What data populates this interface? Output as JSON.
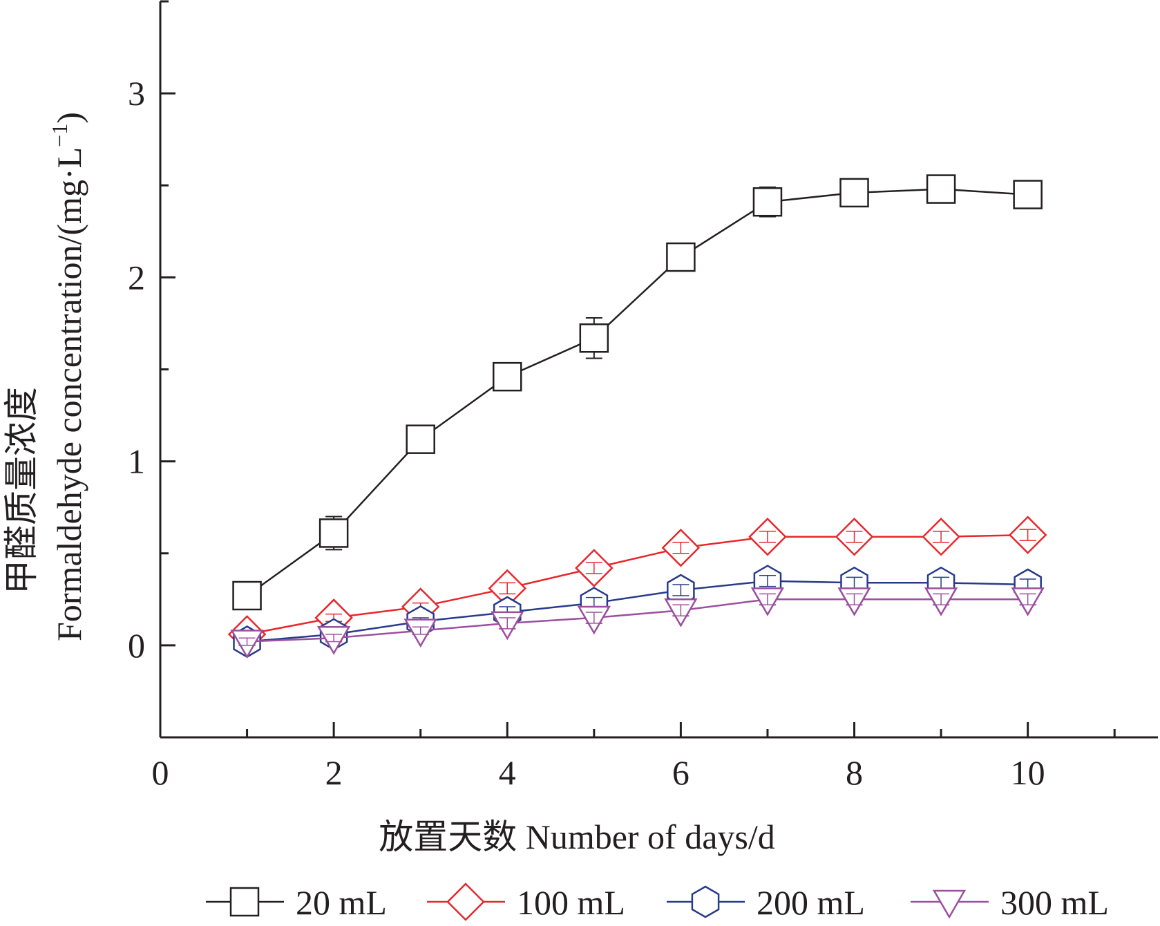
{
  "chart_data": {
    "type": "line",
    "title": "",
    "xlabel": "放置天数  Number of days/d",
    "ylabel": "甲醛质量浓度  Formaldehyde concentration/(mg·L⁻¹)",
    "ylabel_parts": {
      "cn": "甲醛质量浓度",
      "en": "Formaldehyde concentration/(mg·L",
      "sup": "−1",
      "close": ")"
    },
    "xlim": [
      0,
      11.5
    ],
    "ylim": [
      -0.5,
      3.5
    ],
    "xticks": [
      0,
      2,
      4,
      6,
      8,
      10
    ],
    "xticks_minor": [
      1,
      3,
      5,
      7,
      9,
      11
    ],
    "yticks": [
      0,
      1,
      2,
      3
    ],
    "yticks_minor": [
      -0.5,
      0.5,
      1.5,
      2.5,
      3.5
    ],
    "grid": false,
    "legend_position": "bottom",
    "x": [
      1,
      2,
      3,
      4,
      5,
      6,
      7,
      8,
      9,
      10
    ],
    "series": [
      {
        "name": "20 mL",
        "color": "#231f20",
        "marker": "square",
        "values": [
          0.27,
          0.61,
          1.12,
          1.46,
          1.67,
          2.11,
          2.41,
          2.46,
          2.48,
          2.45
        ],
        "errors": [
          0.0,
          0.09,
          0.0,
          0.02,
          0.11,
          0.07,
          0.08,
          0.05,
          0.02,
          0.0
        ]
      },
      {
        "name": "100 mL",
        "color": "#e8262b",
        "marker": "diamond",
        "values": [
          0.06,
          0.15,
          0.21,
          0.31,
          0.42,
          0.53,
          0.59,
          0.59,
          0.59,
          0.6
        ],
        "errors": [
          0.02,
          0.02,
          0.02,
          0.03,
          0.03,
          0.03,
          0.03,
          0.03,
          0.03,
          0.03
        ]
      },
      {
        "name": "200 mL",
        "color": "#283a8c",
        "marker": "hexagon",
        "values": [
          0.02,
          0.06,
          0.13,
          0.18,
          0.23,
          0.3,
          0.35,
          0.34,
          0.34,
          0.33
        ],
        "errors": [
          0.02,
          0.02,
          0.02,
          0.03,
          0.03,
          0.03,
          0.03,
          0.03,
          0.03,
          0.03
        ]
      },
      {
        "name": "300 mL",
        "color": "#9b4f9e",
        "marker": "triangle-down",
        "values": [
          0.02,
          0.04,
          0.08,
          0.12,
          0.15,
          0.19,
          0.25,
          0.25,
          0.25,
          0.25
        ],
        "errors": [
          0.02,
          0.02,
          0.02,
          0.03,
          0.03,
          0.03,
          0.03,
          0.03,
          0.03,
          0.03
        ]
      }
    ]
  }
}
